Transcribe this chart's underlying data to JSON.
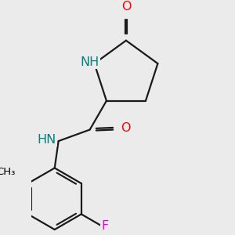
{
  "background_color": "#ebebeb",
  "atom_colors": {
    "O": "#ff0000",
    "NH_ring": "#008080",
    "NH_amide": "#008080",
    "F": "#e000e0",
    "C": "#000000"
  },
  "bond_color": "#1a1a1a",
  "bond_width": 1.6,
  "font_size_atoms": 11.5,
  "font_size_methyl": 9.5
}
